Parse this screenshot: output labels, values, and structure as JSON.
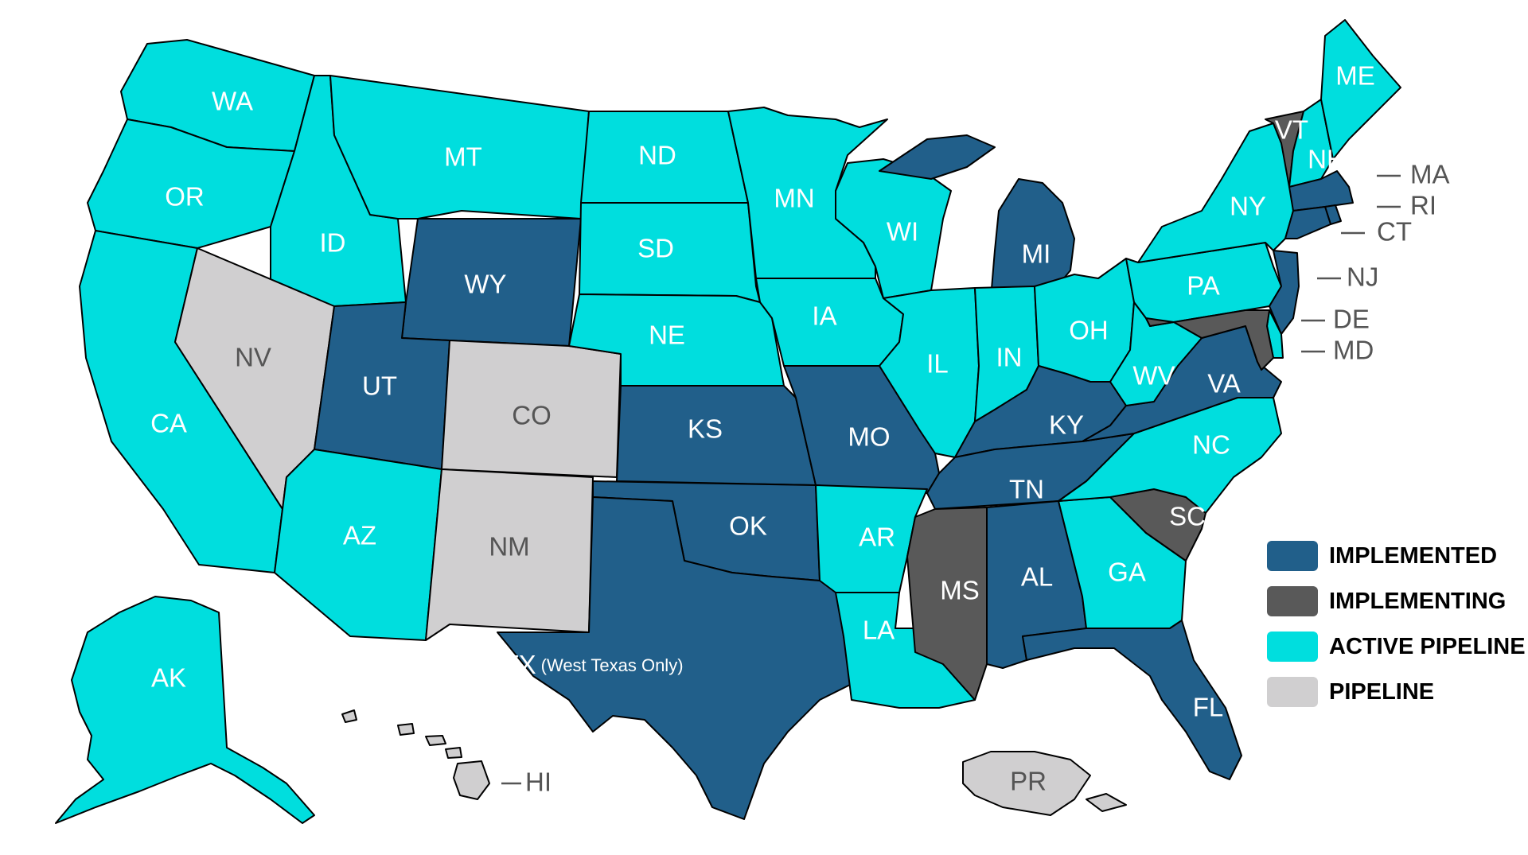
{
  "colors": {
    "implemented": "#215f8a",
    "implementing": "#595959",
    "active": "#00dede",
    "pipeline": "#d0cfd0"
  },
  "legend": [
    {
      "key": "implemented",
      "label": "IMPLEMENTED"
    },
    {
      "key": "implementing",
      "label": "IMPLEMENTING"
    },
    {
      "key": "active",
      "label": "ACTIVE PIPELINE"
    },
    {
      "key": "pipeline",
      "label": "PIPELINE"
    }
  ],
  "states": {
    "WA": {
      "label": "WA",
      "status": "active"
    },
    "OR": {
      "label": "OR",
      "status": "active"
    },
    "CA": {
      "label": "CA",
      "status": "active"
    },
    "ID": {
      "label": "ID",
      "status": "active"
    },
    "NV": {
      "label": "NV",
      "status": "pipeline"
    },
    "MT": {
      "label": "MT",
      "status": "active"
    },
    "WY": {
      "label": "WY",
      "status": "implemented"
    },
    "UT": {
      "label": "UT",
      "status": "implemented"
    },
    "CO": {
      "label": "CO",
      "status": "pipeline"
    },
    "AZ": {
      "label": "AZ",
      "status": "active"
    },
    "NM": {
      "label": "NM",
      "status": "pipeline"
    },
    "ND": {
      "label": "ND",
      "status": "active"
    },
    "SD": {
      "label": "SD",
      "status": "active"
    },
    "NE": {
      "label": "NE",
      "status": "active"
    },
    "KS": {
      "label": "KS",
      "status": "implemented"
    },
    "OK": {
      "label": "OK",
      "status": "implemented"
    },
    "TX": {
      "label": "TX",
      "sublabel": "(West Texas Only)",
      "status": "implemented"
    },
    "MN": {
      "label": "MN",
      "status": "active"
    },
    "IA": {
      "label": "IA",
      "status": "active"
    },
    "MO": {
      "label": "MO",
      "status": "implemented"
    },
    "AR": {
      "label": "AR",
      "status": "active"
    },
    "LA": {
      "label": "LA",
      "status": "active"
    },
    "WI": {
      "label": "WI",
      "status": "active"
    },
    "IL": {
      "label": "IL",
      "status": "active"
    },
    "MI": {
      "label": "MI",
      "status": "implemented"
    },
    "IN": {
      "label": "IN",
      "status": "active"
    },
    "OH": {
      "label": "OH",
      "status": "active"
    },
    "KY": {
      "label": "KY",
      "status": "implemented"
    },
    "TN": {
      "label": "TN",
      "status": "implemented"
    },
    "MS": {
      "label": "MS",
      "status": "implementing"
    },
    "AL": {
      "label": "AL",
      "status": "implemented"
    },
    "GA": {
      "label": "GA",
      "status": "active"
    },
    "FL": {
      "label": "FL",
      "status": "implemented"
    },
    "SC": {
      "label": "SC",
      "status": "implementing"
    },
    "NC": {
      "label": "NC",
      "status": "active"
    },
    "VA": {
      "label": "VA",
      "status": "implemented"
    },
    "WV": {
      "label": "WV",
      "status": "active"
    },
    "PA": {
      "label": "PA",
      "status": "active"
    },
    "NY": {
      "label": "NY",
      "status": "active"
    },
    "VT": {
      "label": "VT",
      "status": "implementing"
    },
    "NH": {
      "label": "NH",
      "status": "active"
    },
    "ME": {
      "label": "ME",
      "status": "active"
    },
    "MA": {
      "label": "MA",
      "status": "implemented"
    },
    "RI": {
      "label": "RI",
      "status": "implemented"
    },
    "CT": {
      "label": "CT",
      "status": "implemented"
    },
    "NJ": {
      "label": "NJ",
      "status": "implemented"
    },
    "DE": {
      "label": "DE",
      "status": "active"
    },
    "MD": {
      "label": "MD",
      "status": "implementing"
    },
    "AK": {
      "label": "AK",
      "status": "active"
    },
    "HI": {
      "label": "HI",
      "status": "pipeline"
    },
    "PR": {
      "label": "PR",
      "status": "pipeline"
    }
  }
}
